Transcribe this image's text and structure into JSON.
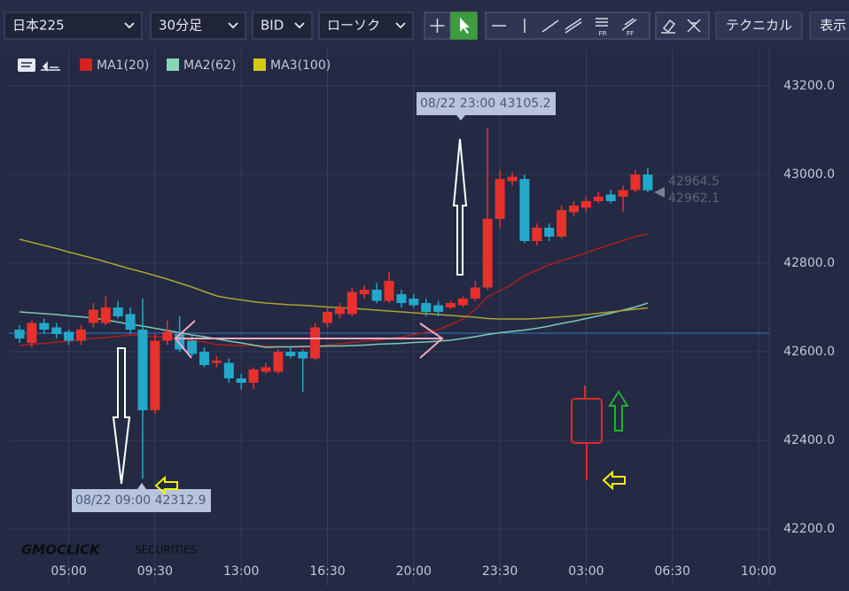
{
  "toolbar": {
    "selects": [
      "日本225",
      "30分足",
      "BID",
      "ローソク"
    ],
    "icon_labels": [
      "FR",
      "FF"
    ],
    "buttons": [
      "テクニカル",
      "表示"
    ]
  },
  "watermark": [
    "GMOCLICK",
    "SECURITIES"
  ],
  "chart_data": {
    "type": "candlestick",
    "categories": [
      null,
      null,
      null,
      null,
      "05:00",
      null,
      null,
      null,
      null,
      null,
      null,
      "09:30",
      null,
      null,
      null,
      null,
      null,
      null,
      "13:00",
      null,
      null,
      null,
      null,
      null,
      null,
      "16:30",
      null,
      null,
      null,
      null,
      null,
      null,
      "20:00",
      null,
      null,
      null,
      null,
      null,
      null,
      "23:30",
      null,
      null,
      null,
      null,
      null,
      null,
      "03:00",
      null,
      null,
      null,
      null,
      null,
      null,
      "06:30",
      null,
      null,
      null,
      null,
      null,
      null,
      "10:00"
    ],
    "open": [
      42650,
      42620,
      42665,
      42655,
      42645,
      42625,
      42665,
      42665,
      42700,
      42685,
      42650,
      42468,
      42625,
      42640,
      42625,
      42600,
      42575,
      42575,
      42540,
      42530,
      42555,
      42555,
      42600,
      42600,
      42585,
      42665,
      42685,
      42685,
      42730,
      42740,
      42715,
      42730,
      42720,
      42710,
      42705,
      42700,
      42705,
      42720,
      42745,
      42900,
      42985,
      42990,
      42850,
      42880,
      42860,
      42915,
      42925,
      42940,
      42955,
      42950,
      42965,
      43000,
      null,
      null,
      null,
      null,
      null,
      null,
      null,
      null,
      null
    ],
    "high": [
      42660,
      42670,
      42675,
      42665,
      42650,
      42660,
      42710,
      42725,
      42715,
      42700,
      42720,
      42640,
      42670,
      42680,
      42635,
      42610,
      42590,
      42585,
      42550,
      42565,
      42575,
      42605,
      42610,
      42605,
      42665,
      42700,
      42710,
      42745,
      42750,
      42755,
      42780,
      42740,
      42730,
      42720,
      42715,
      42715,
      42725,
      42760,
      43105.2,
      43010,
      43005,
      43000,
      42890,
      42890,
      42930,
      42940,
      42950,
      42960,
      42965,
      42975,
      43010,
      43015,
      null,
      null,
      null,
      null,
      null,
      null,
      null,
      null,
      null
    ],
    "low": [
      42620,
      42610,
      42640,
      42630,
      42615,
      42615,
      42655,
      42660,
      42675,
      42640,
      42312.9,
      42460,
      42615,
      42600,
      42590,
      42565,
      42565,
      42530,
      42515,
      42515,
      42550,
      42550,
      42585,
      42510,
      42580,
      42655,
      42675,
      42680,
      42720,
      42710,
      42710,
      42700,
      42700,
      42680,
      42680,
      42695,
      42700,
      42715,
      42740,
      42880,
      42975,
      42845,
      42840,
      42850,
      42855,
      42905,
      42915,
      42935,
      42935,
      42915,
      42960,
      42960,
      null,
      null,
      null,
      null,
      null,
      null,
      null,
      null,
      null
    ],
    "close": [
      42630,
      42665,
      42650,
      42640,
      42625,
      42650,
      42695,
      42700,
      42680,
      42650,
      42468,
      42625,
      42645,
      42605,
      42595,
      42570,
      42580,
      42540,
      42530,
      42560,
      42565,
      42600,
      42590,
      42585,
      42655,
      42690,
      42700,
      42735,
      42740,
      42715,
      42760,
      42710,
      42705,
      42690,
      42690,
      42710,
      42720,
      42745,
      42900,
      42990,
      42995,
      42850,
      42880,
      42860,
      42920,
      42930,
      42940,
      42950,
      42940,
      42965,
      43000,
      42964.5,
      null,
      null,
      null,
      null,
      null,
      null,
      null,
      null,
      null
    ],
    "up_color": "#e8302c",
    "down_color": "#23a8c9",
    "series": [
      {
        "name": "MA1(20)",
        "color": "#a8201e",
        "legend_color": "#d3231f",
        "values": [
          42614,
          42617,
          42619,
          42622,
          42624,
          42627,
          42630,
          42632,
          42635,
          42638,
          42636,
          42634,
          42632,
          42629,
          42626,
          42622,
          42616,
          42615,
          42614,
          42614,
          42613,
          42612,
          42611,
          42610,
          42612,
          42615,
          42618,
          42621,
          42624,
          42626,
          42629,
          42633,
          42639,
          42644,
          42650,
          42661,
          42674,
          42695,
          42724,
          42738,
          42752,
          42772,
          42784,
          42796,
          42806,
          42814,
          42823,
          42833,
          42842,
          42851,
          42860,
          42866,
          null,
          null,
          null,
          null,
          null,
          null,
          null,
          null,
          null
        ]
      },
      {
        "name": "MA2(62)",
        "color": "#7fc8b2",
        "legend_color": "#86d6b8",
        "values": [
          42690,
          42688,
          42686,
          42684,
          42681,
          42679,
          42676,
          42672,
          42667,
          42662,
          42658,
          42653,
          42648,
          42643,
          42638,
          42634,
          42629,
          42624,
          42620,
          42615,
          42610,
          42611,
          42611,
          42612,
          42612,
          42613,
          42613,
          42614,
          42615,
          42617,
          42618,
          42619,
          42621,
          42622,
          42624,
          42626,
          42630,
          42634,
          42639,
          42643,
          42646,
          42649,
          42653,
          42658,
          42664,
          42669,
          42675,
          42681,
          42687,
          42694,
          42701,
          42710,
          null,
          null,
          null,
          null,
          null,
          null,
          null,
          null,
          null
        ]
      },
      {
        "name": "MA3(100)",
        "color": "#a8a432",
        "legend_color": "#d4c814",
        "values": [
          42854,
          42847,
          42840,
          42833,
          42825,
          42818,
          42811,
          42803,
          42795,
          42787,
          42780,
          42772,
          42764,
          42755,
          42746,
          42736,
          42726,
          42721,
          42717,
          42713,
          42710,
          42708,
          42706,
          42705,
          42703,
          42701,
          42700,
          42698,
          42696,
          42694,
          42692,
          42690,
          42688,
          42686,
          42684,
          42682,
          42680,
          42678,
          42675,
          42674,
          42674,
          42674,
          42675,
          42677,
          42679,
          42681,
          42684,
          42687,
          42690,
          42693,
          42696,
          42699,
          null,
          null,
          null,
          null,
          null,
          null,
          null,
          null,
          null
        ]
      }
    ],
    "price_line": 42642,
    "price_line_color": "#3a78c8",
    "last_labels": [
      "42964.5",
      "42962.1"
    ],
    "annotations": [
      "08/22 23:00 43105.2",
      "08/22 09:00 42312.9"
    ],
    "ylim": [
      42144,
      43284
    ],
    "yticks": [
      {
        "value": 42200,
        "label": "42200.0"
      },
      {
        "value": 42400,
        "label": "42400.0"
      },
      {
        "value": 42600,
        "label": "42600.0"
      },
      {
        "value": 42800,
        "label": "42800.0"
      },
      {
        "value": 43000,
        "label": "43000.0"
      },
      {
        "value": 43200,
        "label": "43200.0"
      }
    ],
    "grid": true
  }
}
